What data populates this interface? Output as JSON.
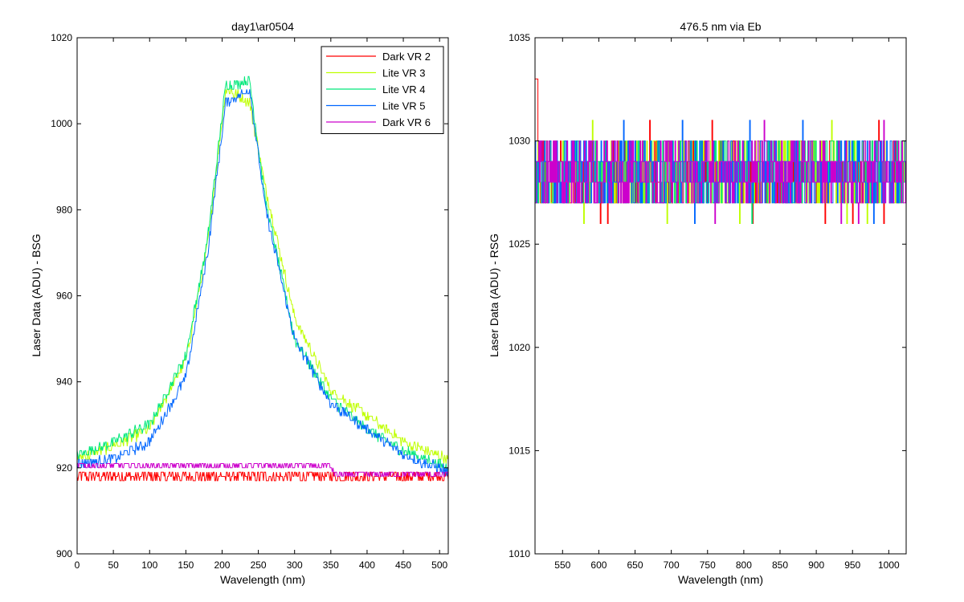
{
  "chart_data": [
    {
      "type": "line",
      "title": "day1\\ar0504",
      "xlabel": "Wavelength (nm)",
      "ylabel": "Laser Data (ADU) - BSG",
      "xlim": [
        0,
        512
      ],
      "ylim": [
        900,
        1020
      ],
      "xticks": [
        0,
        50,
        100,
        150,
        200,
        250,
        300,
        350,
        400,
        450,
        500
      ],
      "yticks": [
        900,
        920,
        940,
        960,
        980,
        1000,
        1020
      ],
      "grid": false,
      "legend": "top-right",
      "series": [
        {
          "name": "Dark VR 2",
          "color": "#ff0000",
          "x": [
            0,
            50,
            100,
            150,
            200,
            250,
            300,
            350,
            400,
            450,
            512
          ],
          "y": [
            918,
            918,
            918,
            918,
            918,
            918,
            918,
            918,
            918,
            918,
            918
          ],
          "noise": 1.5
        },
        {
          "name": "Lite VR 3",
          "color": "#bfff00",
          "x": [
            0,
            50,
            100,
            150,
            180,
            205,
            238,
            260,
            300,
            350,
            400,
            450,
            512
          ],
          "y": [
            922,
            925,
            929,
            945,
            972,
            1008,
            1005,
            985,
            955,
            938,
            932,
            926,
            922
          ],
          "noise": 1.2
        },
        {
          "name": "Lite VR 4",
          "color": "#00e87a",
          "x": [
            0,
            50,
            100,
            150,
            180,
            205,
            238,
            260,
            300,
            350,
            400,
            450,
            512
          ],
          "y": [
            923,
            926,
            930,
            946,
            973,
            1009,
            1010,
            982,
            950,
            936,
            929,
            924,
            920
          ],
          "noise": 1.2
        },
        {
          "name": "Lite VR 5",
          "color": "#0066ff",
          "x": [
            0,
            50,
            100,
            150,
            180,
            205,
            238,
            260,
            300,
            350,
            400,
            450,
            512
          ],
          "y": [
            921,
            922,
            926,
            941,
            970,
            1005,
            1008,
            980,
            950,
            935,
            929,
            923,
            919
          ],
          "noise": 1.2
        },
        {
          "name": "Dark VR 6",
          "color": "#cc00cc",
          "x": [
            0,
            100,
            200,
            300,
            350,
            355,
            400,
            450,
            512
          ],
          "y": [
            920.5,
            920.5,
            920.5,
            920.5,
            920.5,
            918.5,
            918.5,
            918.5,
            918.5
          ],
          "noise": 0.8
        }
      ]
    },
    {
      "type": "line",
      "title": "476.5 nm via Eb",
      "xlabel": "Wavelength (nm)",
      "ylabel": "Laser Data (ADU) - RSG",
      "xlim": [
        512,
        1024
      ],
      "ylim": [
        1010,
        1035
      ],
      "xticks": [
        550,
        600,
        650,
        700,
        750,
        800,
        850,
        900,
        950,
        1000
      ],
      "yticks": [
        1010,
        1015,
        1020,
        1025,
        1030,
        1035
      ],
      "grid": false,
      "series": [
        {
          "color": "#ff0000",
          "levels": [
            1027,
            1028,
            1029,
            1030
          ]
        },
        {
          "color": "#bfff00",
          "levels": [
            1027,
            1028,
            1029,
            1030
          ]
        },
        {
          "color": "#00e87a",
          "levels": [
            1027,
            1028,
            1029,
            1030
          ]
        },
        {
          "color": "#0066ff",
          "levels": [
            1027,
            1028,
            1029,
            1030
          ]
        },
        {
          "color": "#cc00cc",
          "levels": [
            1027,
            1028,
            1029,
            1030
          ]
        }
      ]
    }
  ]
}
